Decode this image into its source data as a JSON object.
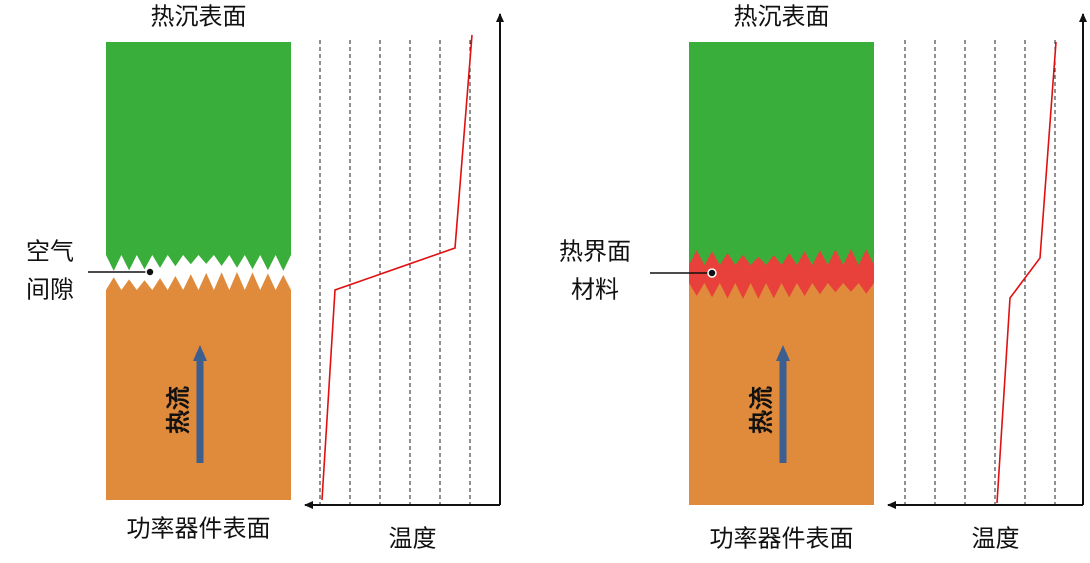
{
  "panels": [
    {
      "top_label": "热沉表面",
      "interface_label": [
        "空气",
        "间隙"
      ],
      "flow_label": "热流",
      "bottom_label": "功率器件表面",
      "axis_label": "温度"
    },
    {
      "top_label": "热沉表面",
      "interface_label": [
        "热界面",
        "材料"
      ],
      "flow_label": "热流",
      "bottom_label": "功率器件表面",
      "axis_label": "温度"
    }
  ]
}
